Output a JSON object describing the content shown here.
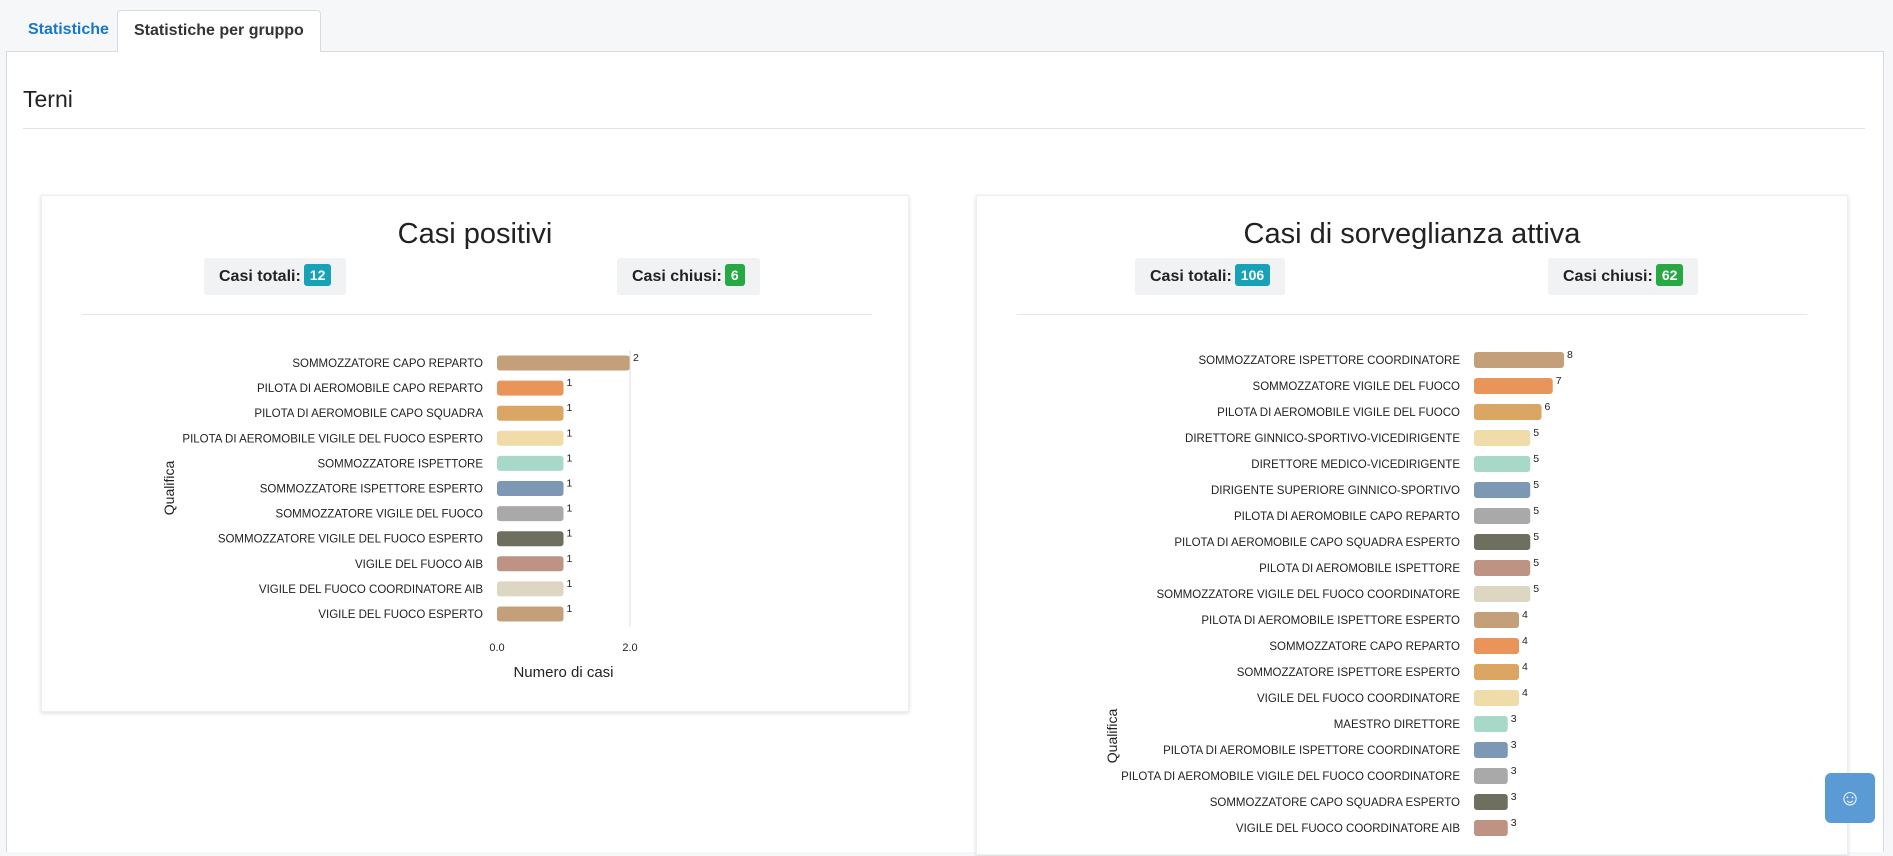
{
  "tabs": [
    {
      "label": "Statistiche"
    },
    {
      "label": "Statistiche per gruppo"
    }
  ],
  "page": {
    "title": "Terni"
  },
  "cards": [
    {
      "title": "Casi positivi",
      "totali_label": "Casi totali:",
      "totali_value": "12",
      "chiusi_label": "Casi chiusi:",
      "chiusi_value": "6"
    },
    {
      "title": "Casi di sorveglianza attiva",
      "totali_label": "Casi totali:",
      "totali_value": "106",
      "chiusi_label": "Casi chiusi:",
      "chiusi_value": "62"
    }
  ],
  "colors": [
    "#c4a07a",
    "#e9955a",
    "#dba663",
    "#f0dca8",
    "#a8d8c8",
    "#7d98b4",
    "#a9a9a9",
    "#6f6f5f",
    "#bf9384",
    "#dcd6c2"
  ],
  "chat": {
    "icon": "smiley-icon",
    "glyph": "☺"
  },
  "chart_data": [
    {
      "type": "bar",
      "orientation": "horizontal",
      "title": "Casi positivi",
      "ylabel": "Qualifica",
      "xlabel": "Numero di casi",
      "xlim": [
        0,
        2
      ],
      "xticks": [
        "0.0",
        "2.0"
      ],
      "categories": [
        "SOMMOZZATORE CAPO REPARTO",
        "PILOTA DI AEROMOBILE CAPO REPARTO",
        "PILOTA DI AEROMOBILE CAPO SQUADRA",
        "PILOTA DI AEROMOBILE VIGILE DEL FUOCO ESPERTO",
        "SOMMOZZATORE ISPETTORE",
        "SOMMOZZATORE ISPETTORE ESPERTO",
        "SOMMOZZATORE VIGILE DEL FUOCO",
        "SOMMOZZATORE VIGILE DEL FUOCO ESPERTO",
        "VIGILE DEL FUOCO AIB",
        "VIGILE DEL FUOCO COORDINATORE AIB",
        "VIGILE DEL FUOCO ESPERTO"
      ],
      "values": [
        2,
        1,
        1,
        1,
        1,
        1,
        1,
        1,
        1,
        1,
        1
      ]
    },
    {
      "type": "bar",
      "orientation": "horizontal",
      "title": "Casi di sorveglianza attiva",
      "ylabel": "Qualifica",
      "xlim": [
        0,
        8
      ],
      "categories": [
        "SOMMOZZATORE ISPETTORE COORDINATORE",
        "SOMMOZZATORE VIGILE DEL FUOCO",
        "PILOTA DI AEROMOBILE VIGILE DEL FUOCO",
        "DIRETTORE GINNICO-SPORTIVO-VICEDIRIGENTE",
        "DIRETTORE MEDICO-VICEDIRIGENTE",
        "DIRIGENTE SUPERIORE GINNICO-SPORTIVO",
        "PILOTA DI AEROMOBILE CAPO REPARTO",
        "PILOTA DI AEROMOBILE CAPO SQUADRA ESPERTO",
        "PILOTA DI AEROMOBILE ISPETTORE",
        "SOMMOZZATORE VIGILE DEL FUOCO COORDINATORE",
        "PILOTA DI AEROMOBILE ISPETTORE ESPERTO",
        "SOMMOZZATORE CAPO REPARTO",
        "SOMMOZZATORE ISPETTORE ESPERTO",
        "VIGILE DEL FUOCO COORDINATORE",
        "MAESTRO DIRETTORE",
        "PILOTA DI AEROMOBILE ISPETTORE COORDINATORE",
        "PILOTA DI AEROMOBILE VIGILE DEL FUOCO COORDINATORE",
        "SOMMOZZATORE CAPO SQUADRA ESPERTO",
        "VIGILE DEL FUOCO COORDINATORE AIB"
      ],
      "values": [
        8,
        7,
        6,
        5,
        5,
        5,
        5,
        5,
        5,
        5,
        4,
        4,
        4,
        4,
        3,
        3,
        3,
        3,
        3
      ]
    }
  ]
}
